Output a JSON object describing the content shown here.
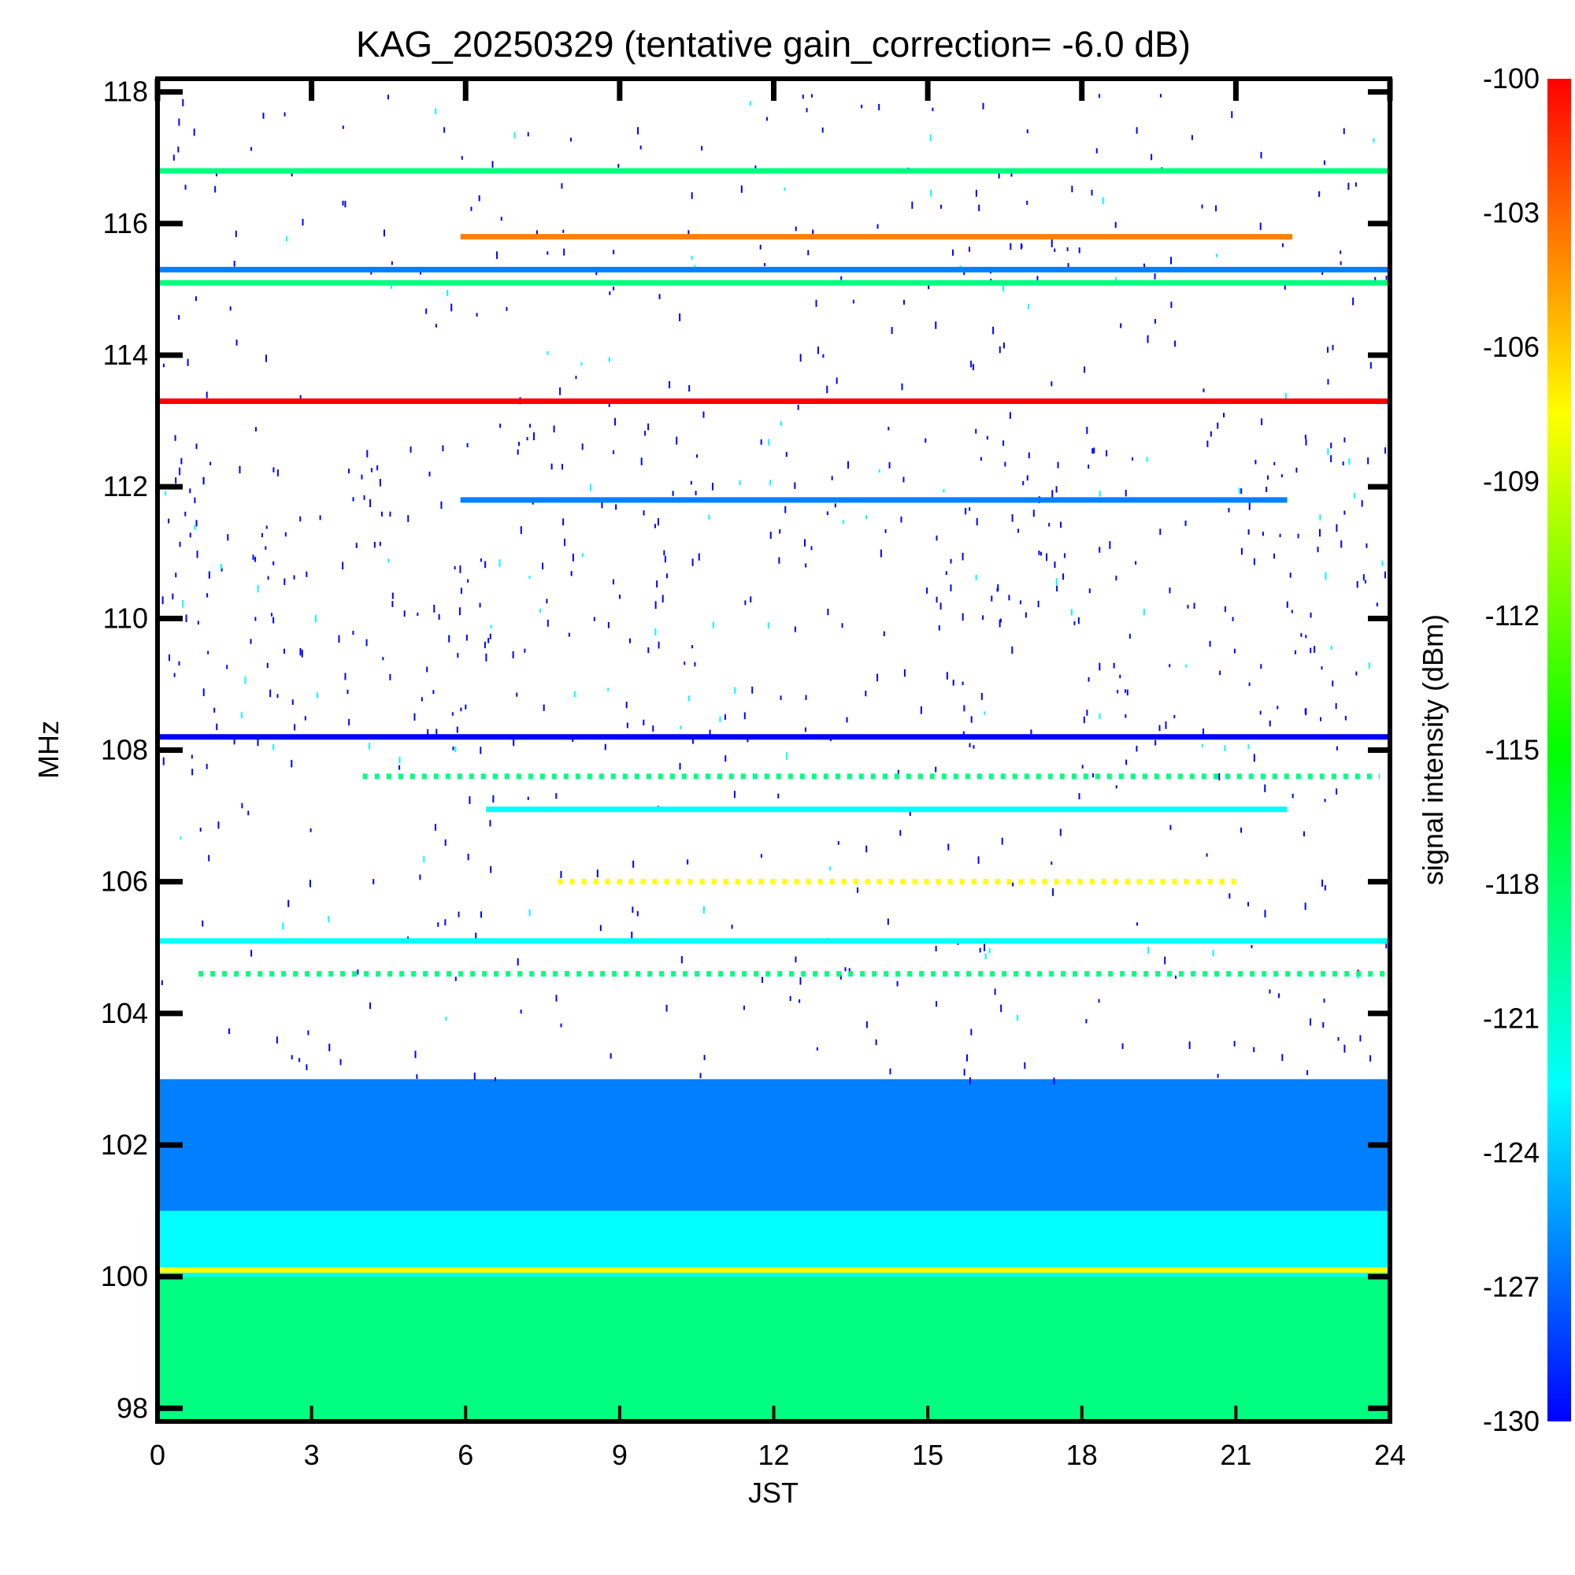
{
  "chart_data": {
    "type": "heatmap",
    "title": "KAG_20250329 (tentative gain_correction= -6.0 dB)",
    "xlabel": "JST",
    "ylabel": "MHz",
    "colorbar_label": "signal intensity (dBm)",
    "xlim": [
      0,
      24
    ],
    "ylim": [
      97.8,
      118.2
    ],
    "x_ticks": [
      "0",
      "3",
      "6",
      "9",
      "12",
      "15",
      "18",
      "21",
      "24"
    ],
    "y_ticks": [
      "98",
      "100",
      "102",
      "104",
      "106",
      "108",
      "110",
      "112",
      "114",
      "116",
      "118"
    ],
    "colorbar_ticks": [
      "-100",
      "-103",
      "-106",
      "-109",
      "-112",
      "-115",
      "-118",
      "-121",
      "-124",
      "-127",
      "-130"
    ],
    "clim": [
      -130,
      -100
    ],
    "colormap": [
      "#0000ff",
      "#0080ff",
      "#00ffff",
      "#00ff80",
      "#00ff00",
      "#80ff00",
      "#ffff00",
      "#ff8000",
      "#ff0000"
    ],
    "features": {
      "continuous_lines": [
        {
          "freq_mhz": 116.8,
          "t_start": 0,
          "t_end": 24,
          "dbm": -118
        },
        {
          "freq_mhz": 115.8,
          "t_start": 5.9,
          "t_end": 22.1,
          "dbm": -104
        },
        {
          "freq_mhz": 115.3,
          "t_start": 0,
          "t_end": 24,
          "dbm": -126
        },
        {
          "freq_mhz": 115.1,
          "t_start": 0,
          "t_end": 24,
          "dbm": -119
        },
        {
          "freq_mhz": 113.3,
          "t_start": 0,
          "t_end": 24,
          "dbm": -100
        },
        {
          "freq_mhz": 111.8,
          "t_start": 5.9,
          "t_end": 22.0,
          "dbm": -127
        },
        {
          "freq_mhz": 108.2,
          "t_start": 0,
          "t_end": 24,
          "dbm": -129
        },
        {
          "freq_mhz": 107.1,
          "t_start": 6.4,
          "t_end": 22.0,
          "dbm": -123
        },
        {
          "freq_mhz": 105.1,
          "t_start": 0,
          "t_end": 24,
          "dbm": -124
        },
        {
          "freq_mhz": 100.1,
          "t_start": 0,
          "t_end": 24,
          "dbm": -107
        }
      ],
      "dashed_lines": [
        {
          "freq_mhz": 107.6,
          "t_start": 4.0,
          "t_end": 23.8,
          "dbm": -119
        },
        {
          "freq_mhz": 106.0,
          "t_start": 7.8,
          "t_end": 21.0,
          "dbm": -108
        },
        {
          "freq_mhz": 104.6,
          "t_start": 0.8,
          "t_end": 24,
          "dbm": -120
        }
      ],
      "background_bands": [
        {
          "f_low": 97.8,
          "f_high": 100.0,
          "dbm": -119
        },
        {
          "f_low": 100.0,
          "f_high": 101.0,
          "dbm": -124
        },
        {
          "f_low": 101.0,
          "f_high": 102.0,
          "dbm": -125
        },
        {
          "f_low": 102.0,
          "f_high": 103.0,
          "dbm": -128
        }
      ]
    }
  }
}
